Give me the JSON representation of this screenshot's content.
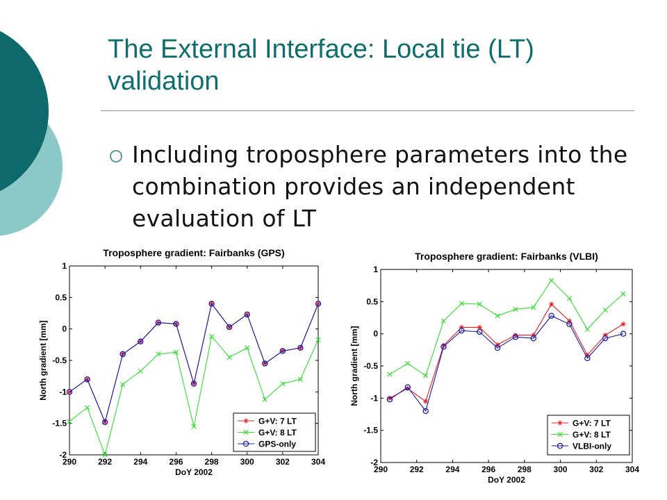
{
  "slide": {
    "title": "The External Interface: Local tie (LT) validation",
    "bullet": "Including troposphere parameters into the combination provides an independent evaluation of LT",
    "theme_colors": {
      "title": "#0e6e6e",
      "circle_dark": "#0e6a6a",
      "circle_light": "#8cc8c8"
    }
  },
  "chart_data": [
    {
      "type": "line",
      "title": "Troposphere gradient: Fairbanks (GPS)",
      "xlabel": "DoY 2002",
      "ylabel": "North gradient [mm]",
      "xlim": [
        290,
        304
      ],
      "ylim": [
        -2,
        1
      ],
      "xticks": [
        290,
        292,
        294,
        296,
        298,
        300,
        302,
        304
      ],
      "yticks": [
        -2,
        -1.5,
        -1,
        -0.5,
        0,
        0.5,
        1
      ],
      "ytick_labels": [
        "-2",
        "-1.5",
        "-1",
        "-0.5",
        "0",
        "0.5",
        "1"
      ],
      "legend_position": "bottom-right",
      "x": [
        290,
        291,
        292,
        293,
        294,
        295,
        296,
        297,
        298,
        299,
        300,
        301,
        302,
        303,
        304
      ],
      "series": [
        {
          "name": "G+V: 7 LT",
          "color": "#e02020",
          "marker": "star",
          "values": [
            -1.0,
            -0.8,
            -1.48,
            -0.4,
            -0.2,
            0.1,
            0.08,
            -0.87,
            0.4,
            0.03,
            0.23,
            -0.55,
            -0.35,
            -0.3,
            0.4
          ]
        },
        {
          "name": "G+V: 8 LT",
          "color": "#33dd33",
          "marker": "x",
          "values": [
            -1.47,
            -1.25,
            -2.0,
            -0.88,
            -0.67,
            -0.4,
            -0.37,
            -1.55,
            -0.12,
            -0.45,
            -0.3,
            -1.12,
            -0.87,
            -0.8,
            -0.17
          ]
        },
        {
          "name": "GPS-only",
          "color": "#1a1aaa",
          "marker": "circle",
          "values": [
            -1.0,
            -0.8,
            -1.48,
            -0.4,
            -0.2,
            0.1,
            0.08,
            -0.87,
            0.4,
            0.03,
            0.23,
            -0.55,
            -0.35,
            -0.3,
            0.4
          ]
        }
      ]
    },
    {
      "type": "line",
      "title": "Troposphere gradient: Fairbanks (VLBI)",
      "xlabel": "DoY 2002",
      "ylabel": "North gradient [mm]",
      "xlim": [
        290,
        304
      ],
      "ylim": [
        -2,
        1
      ],
      "xticks": [
        290,
        292,
        294,
        296,
        298,
        300,
        302,
        304
      ],
      "yticks": [
        -2,
        -1.5,
        -1,
        -0.5,
        0,
        0.5,
        1
      ],
      "ytick_labels": [
        "-2",
        "-1.5",
        "-1",
        "-0.5",
        "0",
        "0.5",
        "1"
      ],
      "legend_position": "bottom-right",
      "x": [
        290.5,
        291.5,
        292.5,
        293.5,
        294.5,
        295.5,
        296.5,
        297.5,
        298.5,
        299.5,
        300.5,
        301.5,
        302.5,
        303.5
      ],
      "series": [
        {
          "name": "G+V: 7 LT",
          "color": "#e02020",
          "marker": "star",
          "values": [
            -1.0,
            -0.85,
            -1.05,
            -0.18,
            0.1,
            0.1,
            -0.17,
            -0.02,
            -0.02,
            0.46,
            0.2,
            -0.33,
            -0.02,
            0.15
          ]
        },
        {
          "name": "G+V: 8 LT",
          "color": "#33dd33",
          "marker": "x",
          "values": [
            -0.63,
            -0.46,
            -0.65,
            0.2,
            0.47,
            0.46,
            0.28,
            0.38,
            0.41,
            0.83,
            0.55,
            0.07,
            0.37,
            0.62
          ]
        },
        {
          "name": "VLBI-only",
          "color": "#1a1aaa",
          "marker": "circle",
          "values": [
            -1.02,
            -0.83,
            -1.2,
            -0.2,
            0.05,
            0.03,
            -0.22,
            -0.05,
            -0.07,
            0.28,
            0.15,
            -0.38,
            -0.07,
            0.0
          ]
        }
      ]
    }
  ]
}
